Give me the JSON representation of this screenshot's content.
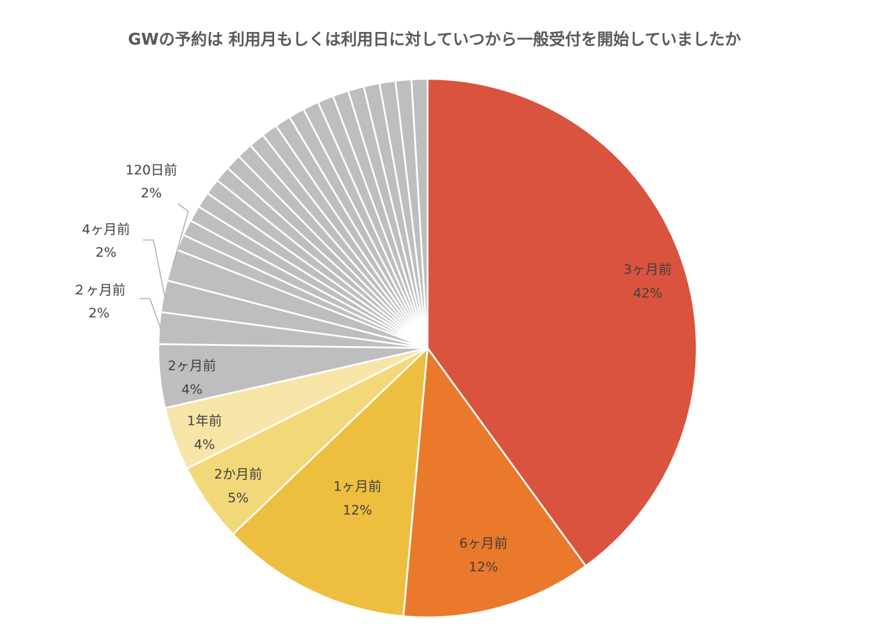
{
  "chart_data": {
    "type": "pie",
    "title": "GWの予約は 利用月もしくは利用日に対していつから一般受付を開始していましたか",
    "slices": [
      {
        "label": "3ヶ月前",
        "value": 42,
        "value_label": "42%",
        "color": "#d9533e",
        "label_placement": "inside"
      },
      {
        "label": "6ヶ月前",
        "value": 12,
        "value_label": "12%",
        "color": "#ea792b",
        "label_placement": "inside"
      },
      {
        "label": "1ヶ月前",
        "value": 12,
        "value_label": "12%",
        "color": "#eebe3e",
        "label_placement": "inside"
      },
      {
        "label": "2か月前",
        "value": 5,
        "value_label": "5%",
        "color": "#f3d87a",
        "label_placement": "inside"
      },
      {
        "label": "1年前",
        "value": 4,
        "value_label": "4%",
        "color": "#f7e5a7",
        "label_placement": "inside"
      },
      {
        "label": "2ヶ月前",
        "value": 4,
        "value_label": "4%",
        "color": "#bebebe",
        "label_placement": "inside"
      },
      {
        "label": "２ヶ月前",
        "value": 2,
        "value_label": "2%",
        "color": "#bebebe",
        "label_placement": "outside"
      },
      {
        "label": "4ヶ月前",
        "value": 2,
        "value_label": "2%",
        "color": "#bebebe",
        "label_placement": "outside"
      },
      {
        "label": "120日前",
        "value": 2,
        "value_label": "2%",
        "color": "#bebebe",
        "label_placement": "outside"
      },
      {
        "label": "",
        "value": 1,
        "value_label": "",
        "color": "#bebebe",
        "label_placement": "none"
      },
      {
        "label": "",
        "value": 1,
        "value_label": "",
        "color": "#bebebe",
        "label_placement": "none"
      },
      {
        "label": "",
        "value": 1,
        "value_label": "",
        "color": "#bebebe",
        "label_placement": "none"
      },
      {
        "label": "",
        "value": 1,
        "value_label": "",
        "color": "#bebebe",
        "label_placement": "none"
      },
      {
        "label": "",
        "value": 1,
        "value_label": "",
        "color": "#bebebe",
        "label_placement": "none"
      },
      {
        "label": "",
        "value": 1,
        "value_label": "",
        "color": "#bebebe",
        "label_placement": "none"
      },
      {
        "label": "",
        "value": 1,
        "value_label": "",
        "color": "#bebebe",
        "label_placement": "none"
      },
      {
        "label": "",
        "value": 1,
        "value_label": "",
        "color": "#bebebe",
        "label_placement": "none"
      },
      {
        "label": "",
        "value": 1,
        "value_label": "",
        "color": "#bebebe",
        "label_placement": "none"
      },
      {
        "label": "",
        "value": 1,
        "value_label": "",
        "color": "#bebebe",
        "label_placement": "none"
      },
      {
        "label": "",
        "value": 1,
        "value_label": "",
        "color": "#bebebe",
        "label_placement": "none"
      },
      {
        "label": "",
        "value": 1,
        "value_label": "",
        "color": "#bebebe",
        "label_placement": "none"
      },
      {
        "label": "",
        "value": 1,
        "value_label": "",
        "color": "#bebebe",
        "label_placement": "none"
      },
      {
        "label": "",
        "value": 1,
        "value_label": "",
        "color": "#bebebe",
        "label_placement": "none"
      },
      {
        "label": "",
        "value": 1,
        "value_label": "",
        "color": "#bebebe",
        "label_placement": "none"
      },
      {
        "label": "",
        "value": 1,
        "value_label": "",
        "color": "#bebebe",
        "label_placement": "none"
      },
      {
        "label": "",
        "value": 1,
        "value_label": "",
        "color": "#bebebe",
        "label_placement": "none"
      },
      {
        "label": "",
        "value": 1,
        "value_label": "",
        "color": "#bebebe",
        "label_placement": "none"
      },
      {
        "label": "",
        "value": 1,
        "value_label": "",
        "color": "#bebebe",
        "label_placement": "none"
      },
      {
        "label": "",
        "value": 1,
        "value_label": "",
        "color": "#bebebe",
        "label_placement": "none"
      }
    ],
    "start_angle_deg": 0,
    "direction": "clockwise",
    "legend": "none"
  }
}
